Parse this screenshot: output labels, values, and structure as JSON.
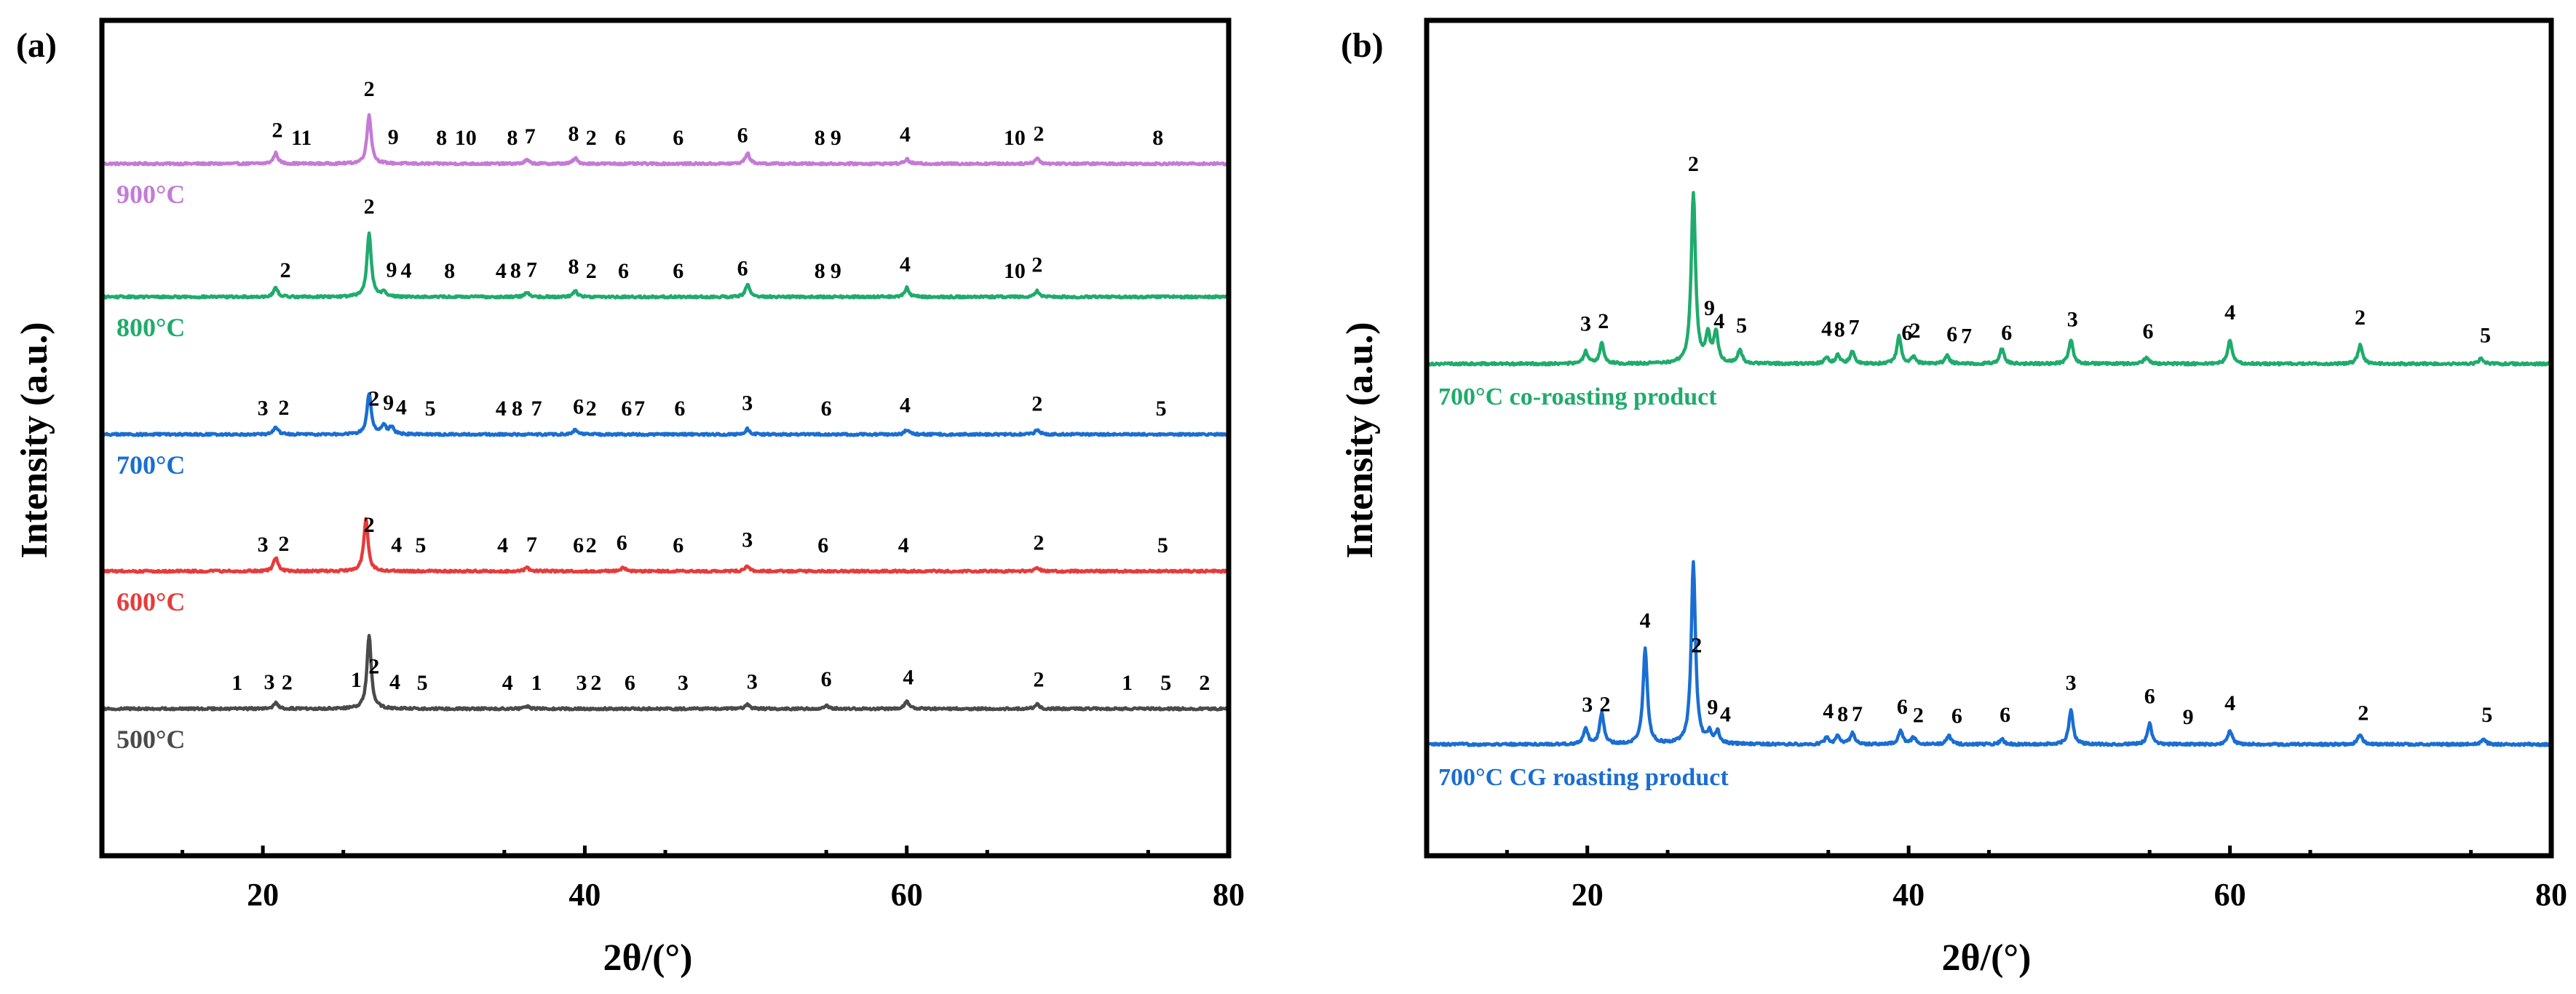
{
  "figure": {
    "panel_a_label": "(a)",
    "panel_b_label": "(b)"
  },
  "chart_data": [
    {
      "type": "line",
      "panel": "(a)",
      "title": "",
      "xlabel": "2θ/(°)",
      "ylabel": "Intensity (a.u.)",
      "xlim": [
        10,
        80
      ],
      "xticks": [
        20,
        40,
        60,
        80
      ],
      "grid": false,
      "series": [
        {
          "name": "900°C",
          "color": "#c57ad6",
          "baseline": 4,
          "peaks": [
            [
              20.8,
              0.35
            ],
            [
              26.6,
              1.6
            ],
            [
              36.4,
              0.12
            ],
            [
              39.4,
              0.18
            ],
            [
              50.1,
              0.35
            ],
            [
              60.0,
              0.15
            ],
            [
              68.1,
              0.18
            ]
          ],
          "peak_labels": [
            {
              "x": 20.9,
              "label": "2"
            },
            {
              "x": 22.4,
              "label": "11"
            },
            {
              "x": 26.6,
              "label": "2"
            },
            {
              "x": 28.1,
              "label": "9"
            },
            {
              "x": 31.1,
              "label": "8"
            },
            {
              "x": 32.6,
              "label": "10"
            },
            {
              "x": 35.5,
              "label": "8"
            },
            {
              "x": 36.6,
              "label": "7"
            },
            {
              "x": 39.3,
              "label": "8"
            },
            {
              "x": 40.4,
              "label": "2"
            },
            {
              "x": 42.2,
              "label": "6"
            },
            {
              "x": 45.8,
              "label": "6"
            },
            {
              "x": 49.8,
              "label": "6"
            },
            {
              "x": 54.6,
              "label": "8"
            },
            {
              "x": 55.6,
              "label": "9"
            },
            {
              "x": 59.9,
              "label": "4"
            },
            {
              "x": 66.7,
              "label": "10"
            },
            {
              "x": 68.2,
              "label": "2"
            },
            {
              "x": 75.6,
              "label": "8"
            }
          ]
        },
        {
          "name": "800°C",
          "color": "#1fab6c",
          "baseline": 3,
          "peaks": [
            [
              20.8,
              0.3
            ],
            [
              26.6,
              2.1
            ],
            [
              27.5,
              0.15
            ],
            [
              36.4,
              0.15
            ],
            [
              39.4,
              0.2
            ],
            [
              50.1,
              0.4
            ],
            [
              60.0,
              0.3
            ],
            [
              68.1,
              0.2
            ]
          ],
          "peak_labels": [
            {
              "x": 21.4,
              "label": "2"
            },
            {
              "x": 26.6,
              "label": "2"
            },
            {
              "x": 28.0,
              "label": "9"
            },
            {
              "x": 28.9,
              "label": "4"
            },
            {
              "x": 31.6,
              "label": "8"
            },
            {
              "x": 34.8,
              "label": "4"
            },
            {
              "x": 35.7,
              "label": "8"
            },
            {
              "x": 36.7,
              "label": "7"
            },
            {
              "x": 39.3,
              "label": "8"
            },
            {
              "x": 40.4,
              "label": "2"
            },
            {
              "x": 42.4,
              "label": "6"
            },
            {
              "x": 45.8,
              "label": "6"
            },
            {
              "x": 49.8,
              "label": "6"
            },
            {
              "x": 54.6,
              "label": "8"
            },
            {
              "x": 55.6,
              "label": "9"
            },
            {
              "x": 59.9,
              "label": "4"
            },
            {
              "x": 66.7,
              "label": "10"
            },
            {
              "x": 68.1,
              "label": "2"
            }
          ]
        },
        {
          "name": "700°C",
          "color": "#1a6ed1",
          "baseline": 2,
          "peaks": [
            [
              20.8,
              0.25
            ],
            [
              26.6,
              1.35
            ],
            [
              27.5,
              0.3
            ],
            [
              28.0,
              0.25
            ],
            [
              39.4,
              0.15
            ],
            [
              50.1,
              0.18
            ],
            [
              60.0,
              0.15
            ],
            [
              68.1,
              0.15
            ]
          ],
          "peak_labels": [
            {
              "x": 20.0,
              "label": "3"
            },
            {
              "x": 21.3,
              "label": "2"
            },
            {
              "x": 26.9,
              "label": "2"
            },
            {
              "x": 27.8,
              "label": "9"
            },
            {
              "x": 28.6,
              "label": "4"
            },
            {
              "x": 30.4,
              "label": "5"
            },
            {
              "x": 34.8,
              "label": "4"
            },
            {
              "x": 35.8,
              "label": "8"
            },
            {
              "x": 37.0,
              "label": "7"
            },
            {
              "x": 39.6,
              "label": "6"
            },
            {
              "x": 40.4,
              "label": "2"
            },
            {
              "x": 42.6,
              "label": "6"
            },
            {
              "x": 43.4,
              "label": "7"
            },
            {
              "x": 45.9,
              "label": "6"
            },
            {
              "x": 50.1,
              "label": "3"
            },
            {
              "x": 55.0,
              "label": "6"
            },
            {
              "x": 59.9,
              "label": "4"
            },
            {
              "x": 68.1,
              "label": "2"
            },
            {
              "x": 75.8,
              "label": "5"
            }
          ]
        },
        {
          "name": "600°C",
          "color": "#e63b3b",
          "baseline": 1,
          "peaks": [
            [
              20.8,
              0.45
            ],
            [
              26.4,
              1.7
            ],
            [
              36.4,
              0.12
            ],
            [
              42.4,
              0.12
            ],
            [
              50.1,
              0.18
            ],
            [
              68.1,
              0.12
            ]
          ],
          "peak_labels": [
            {
              "x": 20.0,
              "label": "3"
            },
            {
              "x": 21.3,
              "label": "2"
            },
            {
              "x": 26.6,
              "label": "2"
            },
            {
              "x": 28.3,
              "label": "4"
            },
            {
              "x": 29.8,
              "label": "5"
            },
            {
              "x": 34.9,
              "label": "4"
            },
            {
              "x": 36.7,
              "label": "7"
            },
            {
              "x": 39.6,
              "label": "6"
            },
            {
              "x": 40.4,
              "label": "2"
            },
            {
              "x": 42.3,
              "label": "6"
            },
            {
              "x": 45.8,
              "label": "6"
            },
            {
              "x": 50.1,
              "label": "3"
            },
            {
              "x": 54.8,
              "label": "6"
            },
            {
              "x": 59.8,
              "label": "4"
            },
            {
              "x": 68.2,
              "label": "2"
            },
            {
              "x": 75.9,
              "label": "5"
            }
          ]
        },
        {
          "name": "500°C",
          "color": "#4a4a4a",
          "baseline": 0,
          "peaks": [
            [
              20.8,
              0.2
            ],
            [
              26.6,
              2.4
            ],
            [
              36.4,
              0.08
            ],
            [
              50.1,
              0.15
            ],
            [
              55.0,
              0.12
            ],
            [
              60.0,
              0.25
            ],
            [
              68.1,
              0.15
            ]
          ],
          "peak_labels": [
            {
              "x": 18.4,
              "label": "1"
            },
            {
              "x": 20.4,
              "label": "3"
            },
            {
              "x": 21.5,
              "label": "2"
            },
            {
              "x": 25.8,
              "label": "1"
            },
            {
              "x": 26.9,
              "label": "2"
            },
            {
              "x": 28.2,
              "label": "4"
            },
            {
              "x": 29.9,
              "label": "5"
            },
            {
              "x": 35.2,
              "label": "4"
            },
            {
              "x": 37.0,
              "label": "1"
            },
            {
              "x": 39.8,
              "label": "3"
            },
            {
              "x": 40.7,
              "label": "2"
            },
            {
              "x": 42.8,
              "label": "6"
            },
            {
              "x": 46.1,
              "label": "3"
            },
            {
              "x": 50.4,
              "label": "3"
            },
            {
              "x": 55.0,
              "label": "6"
            },
            {
              "x": 60.1,
              "label": "4"
            },
            {
              "x": 68.2,
              "label": "2"
            },
            {
              "x": 73.7,
              "label": "1"
            },
            {
              "x": 76.1,
              "label": "5"
            },
            {
              "x": 78.5,
              "label": "2"
            }
          ]
        }
      ]
    },
    {
      "type": "line",
      "panel": "(b)",
      "title": "",
      "xlabel": "2θ/(°)",
      "ylabel": "Intensity (a.u.)",
      "xlim": [
        10,
        80
      ],
      "xticks": [
        20,
        40,
        60,
        80
      ],
      "grid": false,
      "series": [
        {
          "name": "700°C co-roasting product",
          "color": "#1fab6c",
          "baseline": 1,
          "peaks": [
            [
              19.9,
              0.35
            ],
            [
              20.9,
              0.6
            ],
            [
              26.6,
              5.0
            ],
            [
              27.5,
              0.8
            ],
            [
              28.0,
              0.9
            ],
            [
              29.5,
              0.4
            ],
            [
              34.9,
              0.2
            ],
            [
              35.6,
              0.25
            ],
            [
              36.5,
              0.35
            ],
            [
              39.4,
              0.8
            ],
            [
              40.3,
              0.2
            ],
            [
              42.4,
              0.25
            ],
            [
              45.8,
              0.45
            ],
            [
              50.1,
              0.7
            ],
            [
              54.8,
              0.2
            ],
            [
              60.0,
              0.7
            ],
            [
              68.1,
              0.55
            ],
            [
              75.6,
              0.15
            ]
          ],
          "peak_labels": [
            {
              "x": 19.9,
              "label": "3"
            },
            {
              "x": 21.0,
              "label": "2"
            },
            {
              "x": 26.6,
              "label": "2"
            },
            {
              "x": 27.6,
              "label": "9"
            },
            {
              "x": 28.2,
              "label": "4"
            },
            {
              "x": 29.6,
              "label": "5"
            },
            {
              "x": 34.9,
              "label": "4"
            },
            {
              "x": 35.7,
              "label": "8"
            },
            {
              "x": 36.6,
              "label": "7"
            },
            {
              "x": 39.9,
              "label": "6"
            },
            {
              "x": 40.4,
              "label": "2"
            },
            {
              "x": 42.7,
              "label": "6"
            },
            {
              "x": 43.6,
              "label": "7"
            },
            {
              "x": 46.1,
              "label": "6"
            },
            {
              "x": 50.2,
              "label": "3"
            },
            {
              "x": 54.9,
              "label": "6"
            },
            {
              "x": 60.0,
              "label": "4"
            },
            {
              "x": 68.1,
              "label": "2"
            },
            {
              "x": 75.9,
              "label": "5"
            }
          ]
        },
        {
          "name": "700°C CG roasting product",
          "color": "#1a6ed1",
          "baseline": 0,
          "peaks": [
            [
              19.9,
              0.45
            ],
            [
              20.9,
              0.9
            ],
            [
              23.6,
              2.8
            ],
            [
              26.6,
              5.3
            ],
            [
              27.6,
              0.3
            ],
            [
              28.1,
              0.35
            ],
            [
              34.9,
              0.2
            ],
            [
              35.6,
              0.25
            ],
            [
              36.5,
              0.35
            ],
            [
              39.5,
              0.4
            ],
            [
              40.3,
              0.2
            ],
            [
              42.5,
              0.25
            ],
            [
              45.8,
              0.15
            ],
            [
              50.1,
              1.0
            ],
            [
              55.0,
              0.6
            ],
            [
              60.0,
              0.4
            ],
            [
              68.1,
              0.3
            ],
            [
              75.8,
              0.15
            ]
          ],
          "peak_labels": [
            {
              "x": 20.0,
              "label": "3"
            },
            {
              "x": 21.1,
              "label": "2"
            },
            {
              "x": 23.6,
              "label": "4"
            },
            {
              "x": 26.8,
              "label": "2"
            },
            {
              "x": 27.8,
              "label": "9"
            },
            {
              "x": 28.6,
              "label": "4"
            },
            {
              "x": 35.0,
              "label": "4"
            },
            {
              "x": 35.9,
              "label": "8"
            },
            {
              "x": 36.8,
              "label": "7"
            },
            {
              "x": 39.6,
              "label": "6"
            },
            {
              "x": 40.6,
              "label": "2"
            },
            {
              "x": 43.0,
              "label": "6"
            },
            {
              "x": 46.0,
              "label": "6"
            },
            {
              "x": 50.1,
              "label": "3"
            },
            {
              "x": 55.0,
              "label": "6"
            },
            {
              "x": 57.4,
              "label": "9"
            },
            {
              "x": 60.0,
              "label": "4"
            },
            {
              "x": 68.3,
              "label": "2"
            },
            {
              "x": 76.0,
              "label": "5"
            }
          ]
        }
      ]
    }
  ]
}
